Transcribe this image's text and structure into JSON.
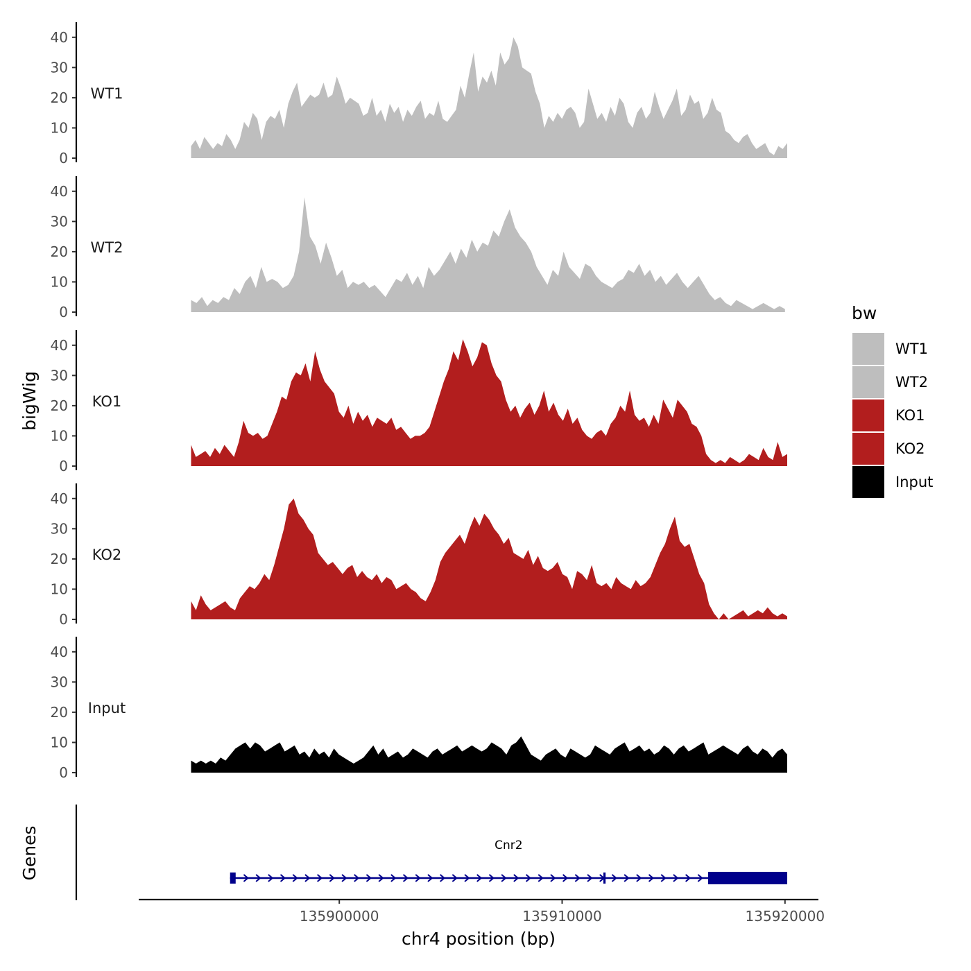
{
  "chart_data": {
    "type": "area",
    "title": "",
    "xlabel": "chr4 position (bp)",
    "ylabel": "bigWig",
    "genes_label": "Genes",
    "xlim": [
      135891000,
      135921500
    ],
    "ylim": [
      0,
      45
    ],
    "y_ticks": [
      "0",
      "10",
      "20",
      "30",
      "40"
    ],
    "x_ticks": [
      {
        "value": 135900000,
        "label": "135900000"
      },
      {
        "value": 135910000,
        "label": "135910000"
      },
      {
        "value": 135920000,
        "label": "135920000"
      }
    ],
    "legend": {
      "title": "bw",
      "position": "right",
      "entries": [
        {
          "name": "WT1",
          "color": "#bebebe"
        },
        {
          "name": "WT2",
          "color": "#bebebe"
        },
        {
          "name": "KO1",
          "color": "#b21e1e"
        },
        {
          "name": "KO2",
          "color": "#b21e1e"
        },
        {
          "name": "Input",
          "color": "#000000"
        }
      ]
    },
    "tracks": [
      {
        "name": "WT1",
        "color": "#bebebe",
        "x_start": 135893350,
        "x_end": 135920100,
        "values": [
          4,
          6,
          3,
          7,
          5,
          3,
          5,
          4,
          8,
          6,
          3,
          6,
          12,
          10,
          15,
          13,
          6,
          12,
          14,
          13,
          16,
          10,
          18,
          22,
          25,
          17,
          19,
          21,
          20,
          21,
          25,
          20,
          21,
          27,
          23,
          18,
          20,
          19,
          18,
          14,
          15,
          20,
          14,
          16,
          12,
          18,
          15,
          17,
          12,
          16,
          14,
          17,
          19,
          13,
          15,
          14,
          19,
          13,
          12,
          14,
          16,
          24,
          20,
          28,
          35,
          22,
          27,
          25,
          29,
          24,
          35,
          31,
          33,
          40,
          37,
          30,
          29,
          28,
          22,
          18,
          10,
          14,
          12,
          15,
          13,
          16,
          17,
          15,
          10,
          12,
          23,
          18,
          13,
          15,
          12,
          17,
          14,
          20,
          18,
          12,
          10,
          15,
          17,
          13,
          15,
          22,
          17,
          13,
          16,
          19,
          23,
          14,
          16,
          21,
          18,
          19,
          13,
          15,
          20,
          16,
          15,
          9,
          8,
          6,
          5,
          7,
          8,
          5,
          3,
          4,
          5,
          2,
          1,
          4,
          3,
          5
        ]
      },
      {
        "name": "WT2",
        "color": "#bebebe",
        "x_start": 135893350,
        "x_end": 135920000,
        "values": [
          4,
          3,
          5,
          2,
          4,
          3,
          5,
          4,
          8,
          6,
          10,
          12,
          8,
          15,
          10,
          11,
          10,
          8,
          9,
          12,
          20,
          38,
          25,
          22,
          16,
          23,
          18,
          12,
          14,
          8,
          10,
          9,
          10,
          8,
          9,
          7,
          5,
          8,
          11,
          10,
          13,
          9,
          12,
          8,
          15,
          12,
          14,
          17,
          20,
          16,
          21,
          18,
          24,
          20,
          23,
          22,
          27,
          25,
          30,
          34,
          28,
          25,
          23,
          20,
          15,
          12,
          9,
          14,
          12,
          20,
          15,
          13,
          11,
          16,
          15,
          12,
          10,
          9,
          8,
          10,
          11,
          14,
          13,
          16,
          12,
          14,
          10,
          12,
          9,
          11,
          13,
          10,
          8,
          10,
          12,
          9,
          6,
          4,
          5,
          3,
          2,
          4,
          3,
          2,
          1,
          2,
          3,
          2,
          1,
          2,
          1
        ]
      },
      {
        "name": "KO1",
        "color": "#b21e1e",
        "x_start": 135893350,
        "x_end": 135920100,
        "values": [
          7,
          3,
          4,
          5,
          3,
          6,
          4,
          7,
          5,
          3,
          8,
          15,
          11,
          10,
          11,
          9,
          10,
          14,
          18,
          23,
          22,
          28,
          31,
          30,
          34,
          28,
          38,
          32,
          28,
          26,
          24,
          18,
          16,
          20,
          14,
          18,
          15,
          17,
          13,
          16,
          15,
          14,
          16,
          12,
          13,
          11,
          9,
          10,
          10,
          11,
          13,
          18,
          23,
          28,
          32,
          38,
          35,
          42,
          38,
          33,
          36,
          41,
          40,
          34,
          30,
          28,
          22,
          18,
          20,
          16,
          19,
          21,
          17,
          20,
          25,
          18,
          21,
          17,
          15,
          19,
          14,
          16,
          12,
          10,
          9,
          11,
          12,
          10,
          14,
          16,
          20,
          18,
          25,
          17,
          15,
          16,
          13,
          17,
          14,
          22,
          19,
          16,
          22,
          20,
          18,
          14,
          13,
          10,
          4,
          2,
          1,
          2,
          1,
          3,
          2,
          1,
          2,
          4,
          3,
          2,
          6,
          3,
          2,
          8,
          3,
          4
        ]
      },
      {
        "name": "KO2",
        "color": "#b21e1e",
        "x_start": 135893350,
        "x_end": 135920100,
        "values": [
          6,
          3,
          8,
          5,
          3,
          4,
          5,
          6,
          4,
          3,
          7,
          9,
          11,
          10,
          12,
          15,
          13,
          18,
          24,
          30,
          38,
          40,
          35,
          33,
          30,
          28,
          22,
          20,
          18,
          19,
          17,
          15,
          17,
          18,
          14,
          16,
          14,
          13,
          15,
          12,
          14,
          13,
          10,
          11,
          12,
          10,
          9,
          7,
          6,
          9,
          13,
          19,
          22,
          24,
          26,
          28,
          25,
          30,
          34,
          31,
          35,
          33,
          30,
          28,
          25,
          27,
          22,
          21,
          20,
          23,
          18,
          21,
          17,
          16,
          17,
          19,
          15,
          14,
          10,
          16,
          15,
          13,
          18,
          12,
          11,
          12,
          10,
          14,
          12,
          11,
          10,
          13,
          11,
          12,
          14,
          18,
          22,
          25,
          30,
          34,
          26,
          24,
          25,
          20,
          15,
          12,
          5,
          2,
          0,
          2,
          0,
          1,
          2,
          3,
          1,
          2,
          3,
          2,
          4,
          2,
          1,
          2,
          1
        ]
      },
      {
        "name": "Input",
        "color": "#000000",
        "x_start": 135893350,
        "x_end": 135920100,
        "values": [
          4,
          3,
          4,
          3,
          4,
          3,
          5,
          4,
          6,
          8,
          9,
          10,
          8,
          10,
          9,
          7,
          8,
          9,
          10,
          7,
          8,
          9,
          6,
          7,
          5,
          8,
          6,
          7,
          5,
          8,
          6,
          5,
          4,
          3,
          4,
          5,
          7,
          9,
          6,
          8,
          5,
          6,
          7,
          5,
          6,
          8,
          7,
          6,
          5,
          7,
          8,
          6,
          7,
          8,
          9,
          7,
          8,
          9,
          8,
          7,
          8,
          10,
          9,
          8,
          6,
          9,
          10,
          12,
          9,
          6,
          5,
          4,
          6,
          7,
          8,
          6,
          5,
          8,
          7,
          6,
          5,
          6,
          9,
          8,
          7,
          6,
          8,
          9,
          10,
          7,
          8,
          9,
          7,
          8,
          6,
          7,
          9,
          8,
          6,
          8,
          9,
          7,
          8,
          9,
          10,
          6,
          7,
          8,
          9,
          8,
          7,
          6,
          8,
          9,
          7,
          6,
          8,
          7,
          5,
          7,
          8,
          6
        ]
      }
    ],
    "genes": [
      {
        "name": "Cnr2",
        "strand": "+",
        "start": 135895100,
        "end": 135920100,
        "exons": [
          [
            135895100,
            135895350
          ],
          [
            135911850,
            135911950
          ],
          [
            135916550,
            135920100
          ]
        ],
        "color": "#00008b"
      }
    ]
  }
}
